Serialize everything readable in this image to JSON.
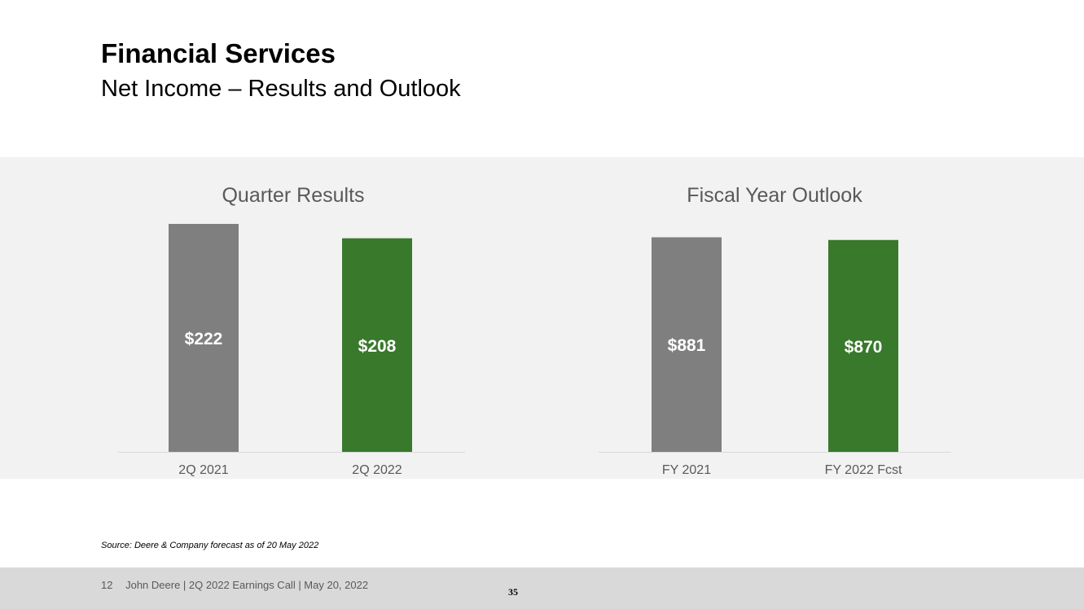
{
  "title": "Financial Services",
  "subtitle": "Net Income – Results and Outlook",
  "source_note": "Source: Deere & Company forecast as of 20 May 2022",
  "footer": {
    "page": "12",
    "text": "John Deere | 2Q 2022 Earnings Call | May 20, 2022",
    "page_number": "35"
  },
  "colors": {
    "prior": "#7f7f7f",
    "current": "#38792b",
    "panel_bg": "#f2f2f2",
    "footer_bg": "#d9d9d9"
  },
  "chart_data": [
    {
      "type": "bar",
      "title": "Quarter Results",
      "categories": [
        "2Q 2021",
        "2Q 2022"
      ],
      "values": [
        222,
        208
      ],
      "labels": [
        "$222",
        "$208"
      ],
      "colors": [
        "#7f7f7f",
        "#38792b"
      ],
      "ylim": [
        0,
        222
      ],
      "grid": false,
      "legend": "none"
    },
    {
      "type": "bar",
      "title": "Fiscal Year Outlook",
      "categories": [
        "FY 2021",
        "FY 2022 Fcst"
      ],
      "values": [
        881,
        870
      ],
      "labels": [
        "$881",
        "$870"
      ],
      "colors": [
        "#7f7f7f",
        "#38792b"
      ],
      "ylim": [
        0,
        936
      ],
      "grid": false,
      "legend": "none"
    }
  ]
}
